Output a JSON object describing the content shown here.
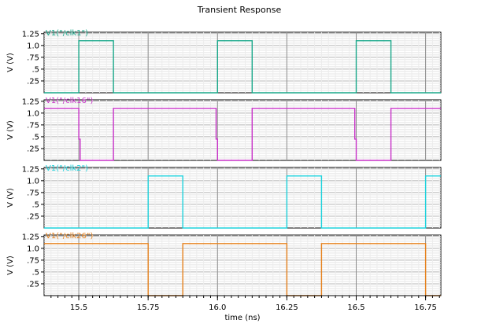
{
  "chart_data": {
    "type": "line",
    "title": "Transient Response",
    "xlabel": "time (ns)",
    "xlim": [
      15.375,
      16.805
    ],
    "x_ticks": [
      "15.5",
      "15.75",
      "16.0",
      "16.25",
      "16.5",
      "16.75"
    ],
    "x_tick_values": [
      15.5,
      15.75,
      16.0,
      16.25,
      16.5,
      16.75
    ],
    "grid": true,
    "panels": [
      {
        "name": "/clk1",
        "legend_label": "V1(\"/clk1\")",
        "color": "#1aa88a",
        "ylabel": "V (V)",
        "ylim": [
          0.0,
          1.28
        ],
        "y_ticks": [
          "1.25",
          "1.0",
          ".75",
          ".5",
          ".25"
        ],
        "y_tick_values": [
          1.25,
          1.0,
          0.75,
          0.5,
          0.25
        ],
        "x": [
          15.375,
          15.5,
          15.5,
          15.625,
          15.625,
          16.0,
          16.0,
          16.125,
          16.125,
          16.5,
          16.5,
          16.625,
          16.625,
          16.805
        ],
        "y": [
          0.0,
          0.0,
          1.1,
          1.1,
          0.0,
          0.0,
          1.1,
          1.1,
          0.0,
          0.0,
          1.1,
          1.1,
          0.0,
          0.0
        ]
      },
      {
        "name": "/clk16",
        "legend_label": "V1(\"/clk16\")",
        "color": "#c832c8",
        "ylabel": "V (V)",
        "ylim": [
          0.0,
          1.28
        ],
        "y_ticks": [
          "1.25",
          "1.0",
          ".75",
          ".5",
          ".25"
        ],
        "y_tick_values": [
          1.25,
          1.0,
          0.75,
          0.5,
          0.25
        ],
        "x": [
          15.375,
          15.5,
          15.5,
          15.505,
          15.505,
          15.625,
          15.625,
          15.995,
          15.995,
          16.0,
          16.0,
          16.125,
          16.125,
          16.495,
          16.495,
          16.5,
          16.5,
          16.625,
          16.625,
          16.805
        ],
        "y": [
          1.1,
          1.1,
          0.45,
          0.45,
          0.0,
          0.0,
          1.1,
          1.1,
          0.45,
          0.45,
          0.0,
          0.0,
          1.1,
          1.1,
          0.45,
          0.45,
          0.0,
          0.0,
          1.1,
          1.1
        ]
      },
      {
        "name": "/clk2",
        "legend_label": "V1(\"/clk2\")",
        "color": "#1ed2dc",
        "ylabel": "V (V)",
        "ylim": [
          0.0,
          1.28
        ],
        "y_ticks": [
          "1.25",
          "1.0",
          ".75",
          ".5",
          ".25"
        ],
        "y_tick_values": [
          1.25,
          1.0,
          0.75,
          0.5,
          0.25
        ],
        "x": [
          15.375,
          15.75,
          15.75,
          15.875,
          15.875,
          16.25,
          16.25,
          16.375,
          16.375,
          16.75,
          16.75,
          16.805
        ],
        "y": [
          0.0,
          0.0,
          1.1,
          1.1,
          0.0,
          0.0,
          1.1,
          1.1,
          0.0,
          0.0,
          1.1,
          1.1
        ]
      },
      {
        "name": "/clk26",
        "legend_label": "V1(\"/clk26\")",
        "color": "#e6821e",
        "ylabel": "V (V)",
        "ylim": [
          0.0,
          1.28
        ],
        "y_ticks": [
          "1.25",
          "1.0",
          ".75",
          ".5",
          ".25"
        ],
        "y_tick_values": [
          1.25,
          1.0,
          0.75,
          0.5,
          0.25
        ],
        "x": [
          15.375,
          15.75,
          15.75,
          15.875,
          15.875,
          16.25,
          16.25,
          16.375,
          16.375,
          16.75,
          16.75,
          16.805
        ],
        "y": [
          1.1,
          1.1,
          0.0,
          0.0,
          1.1,
          1.1,
          0.0,
          0.0,
          1.1,
          1.1,
          0.0,
          0.0
        ]
      }
    ]
  }
}
